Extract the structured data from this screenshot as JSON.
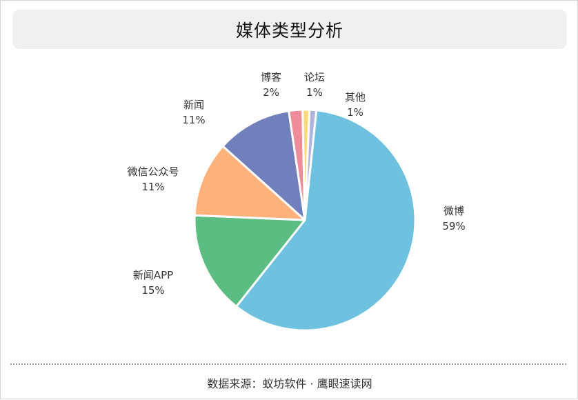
{
  "title": "媒体类型分析",
  "source": "数据来源：蚁坊软件 · 鹰眼速读网",
  "chart_data": {
    "type": "pie",
    "title": "媒体类型分析",
    "slices": [
      {
        "name": "微博",
        "value": 59,
        "pct_label": "59%",
        "color": "#6ec2e0"
      },
      {
        "name": "新闻APP",
        "value": 15,
        "pct_label": "15%",
        "color": "#5bbd82"
      },
      {
        "name": "微信公众号",
        "value": 11,
        "pct_label": "11%",
        "color": "#fdb27c"
      },
      {
        "name": "新闻",
        "value": 11,
        "pct_label": "11%",
        "color": "#727fbd"
      },
      {
        "name": "博客",
        "value": 2,
        "pct_label": "2%",
        "color": "#ee8c9a"
      },
      {
        "name": "论坛",
        "value": 1,
        "pct_label": "1%",
        "color": "#fbd97e"
      },
      {
        "name": "其他",
        "value": 1,
        "pct_label": "1%",
        "color": "#b1b5dd"
      }
    ],
    "legend": "none"
  }
}
